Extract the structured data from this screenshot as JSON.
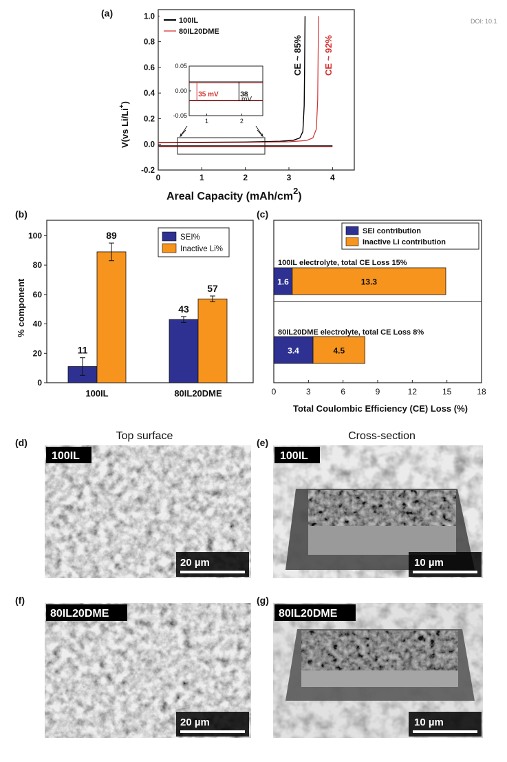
{
  "doi_text": "DOI: 10.1",
  "colors": {
    "curve_100il": "#000000",
    "curve_80il": "#d32f2f",
    "sei": "#2e3192",
    "inactive": "#f7941d",
    "micro_bg": "#5a5a5a",
    "label_bg": "#000000"
  },
  "chart_data": [
    {
      "panel": "(a)",
      "type": "line",
      "xlabel": "Areal Capacity (mAh/cm",
      "xlabel_sup": "2",
      "xlabel_close": ")",
      "ylabel": "V(vs Li/Li",
      "ylabel_sup": "+",
      "ylabel_close": ")",
      "xlim": [
        0,
        4.5
      ],
      "ylim": [
        -0.2,
        1.05
      ],
      "x_ticks": [
        0,
        1,
        2,
        3,
        4
      ],
      "y_ticks": [
        -0.2,
        0.0,
        0.2,
        0.4,
        0.6,
        0.8,
        1.0
      ],
      "legend": [
        "100IL",
        "80IL20DME"
      ],
      "annotations": [
        {
          "text": "CE ~ 85%",
          "series": "100IL"
        },
        {
          "text": "CE ~ 92%",
          "series": "80IL20DME"
        }
      ],
      "series": [
        {
          "name": "100IL",
          "plating": [
            [
              0.0,
              -0.012
            ],
            [
              4.0,
              -0.012
            ]
          ],
          "stripping": [
            [
              0.0,
              0.014
            ],
            [
              1.0,
              0.016
            ],
            [
              2.0,
              0.018
            ],
            [
              2.8,
              0.024
            ],
            [
              3.1,
              0.032
            ],
            [
              3.25,
              0.05
            ],
            [
              3.32,
              0.1
            ],
            [
              3.35,
              0.3
            ],
            [
              3.36,
              0.6
            ],
            [
              3.37,
              1.0
            ]
          ]
        },
        {
          "name": "80IL20DME",
          "plating": [
            [
              0.0,
              -0.012
            ],
            [
              4.0,
              -0.012
            ]
          ],
          "stripping": [
            [
              0.0,
              0.012
            ],
            [
              1.0,
              0.013
            ],
            [
              2.0,
              0.015
            ],
            [
              3.0,
              0.02
            ],
            [
              3.4,
              0.03
            ],
            [
              3.55,
              0.05
            ],
            [
              3.63,
              0.12
            ],
            [
              3.66,
              0.35
            ],
            [
              3.67,
              0.7
            ],
            [
              3.68,
              1.0
            ]
          ]
        }
      ],
      "inset": {
        "xlim": [
          0.5,
          2.6
        ],
        "ylim": [
          -0.05,
          0.05
        ],
        "x_ticks": [
          1,
          2
        ],
        "y_ticks": [
          "0.05",
          "0.00",
          "-0.05"
        ],
        "labels": [
          {
            "text": "35 mV",
            "series": "80IL20DME"
          },
          {
            "text": "38",
            "series": "100IL"
          },
          {
            "text": "mV",
            "series": "100IL"
          }
        ],
        "lines": [
          {
            "name": "100IL",
            "upper": 0.018,
            "lower": -0.02
          },
          {
            "name": "80IL20DME",
            "upper": 0.016,
            "lower": -0.019
          }
        ]
      }
    },
    {
      "panel": "(b)",
      "type": "bar",
      "ylabel": "% component",
      "ylim": [
        0,
        100
      ],
      "y_ticks": [
        0,
        20,
        40,
        60,
        80,
        100
      ],
      "categories": [
        "100IL",
        "80IL20DME"
      ],
      "series": [
        {
          "name": "SEI%",
          "values": [
            11,
            43
          ],
          "errors": [
            6,
            2
          ]
        },
        {
          "name": "Inactive Li%",
          "values": [
            89,
            57
          ],
          "errors": [
            6,
            2
          ]
        }
      ]
    },
    {
      "panel": "(c)",
      "type": "bar",
      "orientation": "horizontal-stacked",
      "xlabel": "Total Coulombic Efficiency (CE) Loss (%)",
      "xlim": [
        0,
        18
      ],
      "x_ticks": [
        0,
        3,
        6,
        9,
        12,
        15,
        18
      ],
      "legend": [
        "SEI contribution",
        "Inactive Li contribution"
      ],
      "groups": [
        {
          "title": "100IL electrolyte, total CE Loss 15%",
          "sei": 1.6,
          "inactive": 13.3
        },
        {
          "title": "80IL20DME electrolyte, total CE Loss 8%",
          "sei": 3.4,
          "inactive": 4.5
        }
      ]
    }
  ],
  "micrographs": {
    "col_titles": [
      "Top surface",
      "Cross-section"
    ],
    "panels": [
      {
        "tag": "(d)",
        "sample": "100IL",
        "scale": "20 µm"
      },
      {
        "tag": "(e)",
        "sample": "100IL",
        "scale": "10 µm"
      },
      {
        "tag": "(f)",
        "sample": "80IL20DME",
        "scale": "20 µm"
      },
      {
        "tag": "(g)",
        "sample": "80IL20DME",
        "scale": "10 µm"
      }
    ]
  }
}
